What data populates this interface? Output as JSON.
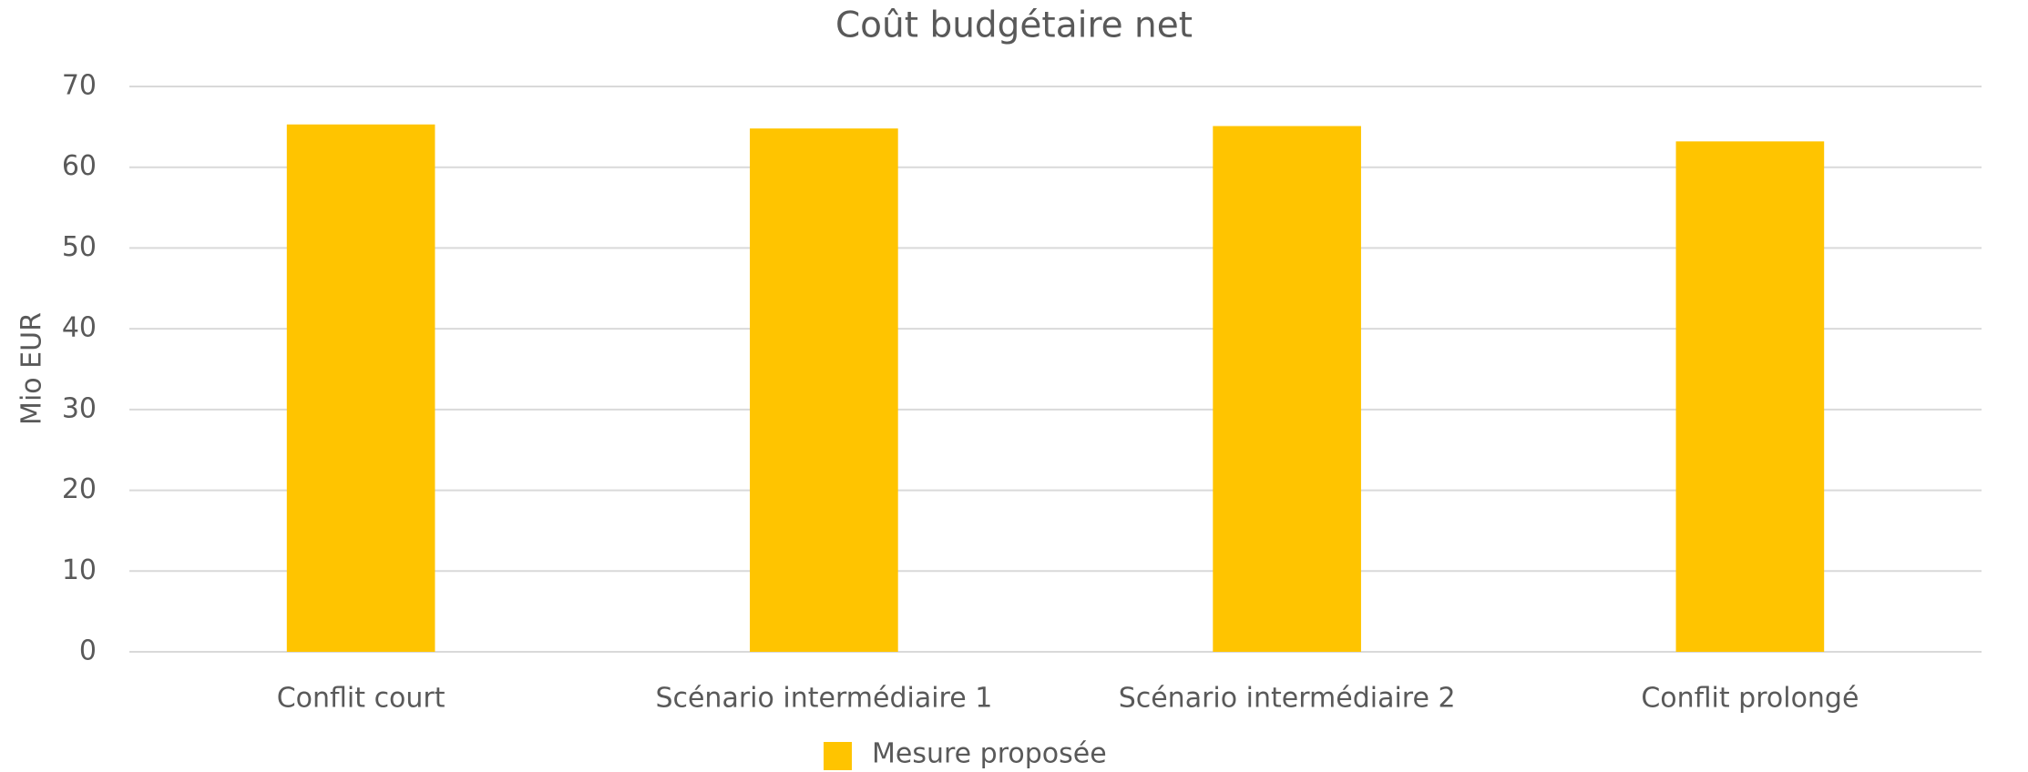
{
  "chart_data": {
    "type": "bar",
    "title": "Coût budgétaire net",
    "ylabel": "Mio EUR",
    "categories": [
      "Conflit court",
      "Scénario intermédiaire 1",
      "Scénario intermédiaire 2",
      "Conflit prolongé"
    ],
    "series": [
      {
        "name": "Mesure proposée",
        "color": "#FFC400",
        "values": [
          65.3,
          64.8,
          65.1,
          63.2
        ]
      }
    ],
    "ylim": [
      0,
      70
    ],
    "yticks": [
      0,
      10,
      20,
      30,
      40,
      50,
      60,
      70
    ],
    "grid": true,
    "legend": "bottom"
  }
}
